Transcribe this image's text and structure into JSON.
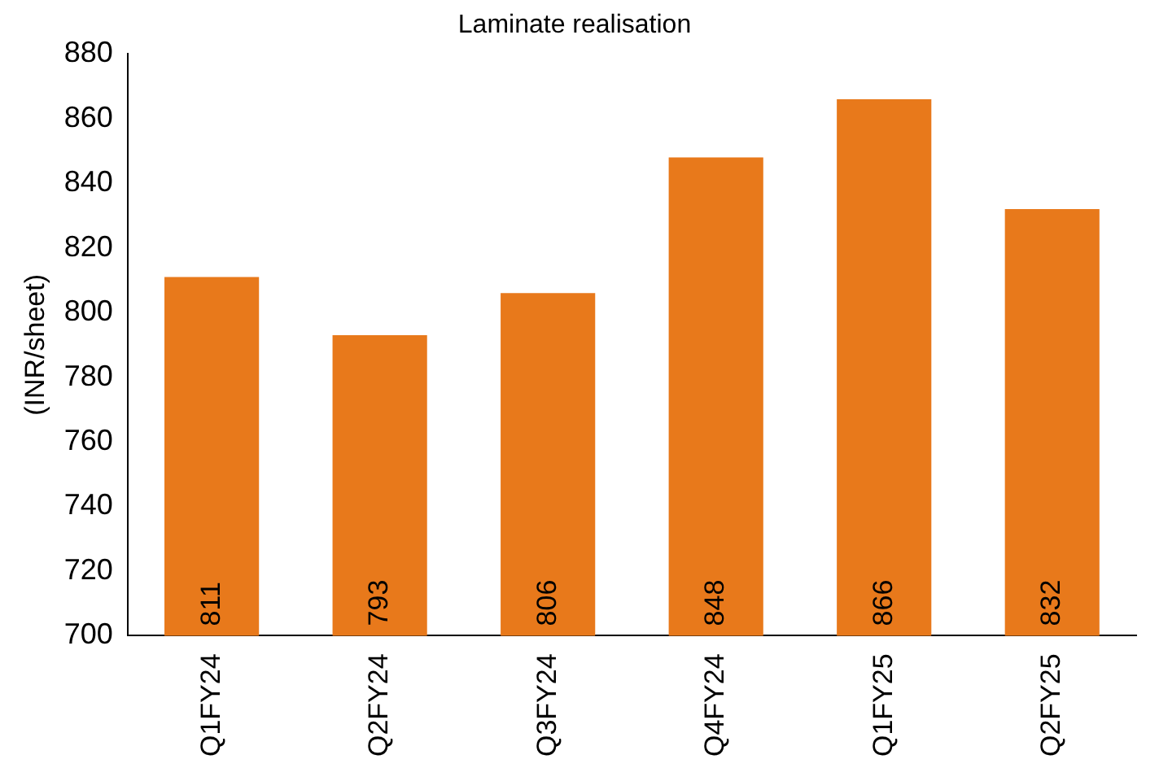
{
  "chart_data": {
    "type": "bar",
    "title": "Laminate realisation",
    "ylabel": "(INR/sheet)",
    "categories": [
      "Q1FY24",
      "Q2FY24",
      "Q3FY24",
      "Q4FY24",
      "Q1FY25",
      "Q2FY25"
    ],
    "values": [
      811,
      793,
      806,
      848,
      866,
      832
    ],
    "color": "#e8791b",
    "ylim": [
      700,
      880
    ],
    "yticks": [
      700,
      720,
      740,
      760,
      780,
      800,
      820,
      840,
      860,
      880
    ],
    "grid": false,
    "legend": false,
    "data_labels": true
  }
}
